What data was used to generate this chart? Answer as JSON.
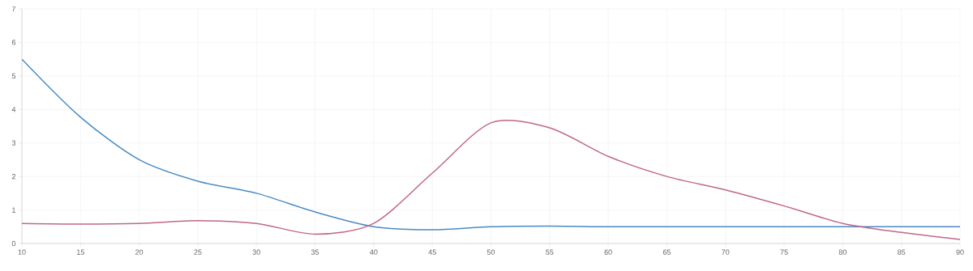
{
  "chart_data": {
    "type": "line",
    "x": [
      10,
      15,
      20,
      25,
      30,
      35,
      40,
      45,
      50,
      55,
      60,
      65,
      70,
      75,
      80,
      85,
      90
    ],
    "series": [
      {
        "color": "#4a8bc2",
        "values": [
          5.5,
          3.77,
          2.5,
          1.86,
          1.5,
          0.94,
          0.5,
          0.41,
          0.5,
          0.52,
          0.5,
          0.5,
          0.5,
          0.5,
          0.5,
          0.5,
          0.5
        ]
      },
      {
        "color": "#c0678a",
        "values": [
          0.6,
          0.58,
          0.6,
          0.68,
          0.6,
          0.28,
          0.6,
          2.1,
          3.6,
          3.45,
          2.6,
          2.0,
          1.6,
          1.12,
          0.6,
          0.33,
          0.12
        ]
      }
    ],
    "xlim": [
      10,
      90
    ],
    "ylim": [
      0,
      7
    ],
    "xticks": [
      10,
      15,
      20,
      25,
      30,
      35,
      40,
      45,
      50,
      55,
      60,
      65,
      70,
      75,
      80,
      85,
      90
    ],
    "yticks": [
      0,
      1,
      2,
      3,
      4,
      5,
      6,
      7
    ],
    "grid": true,
    "marker": "none",
    "line_style": "solid"
  }
}
